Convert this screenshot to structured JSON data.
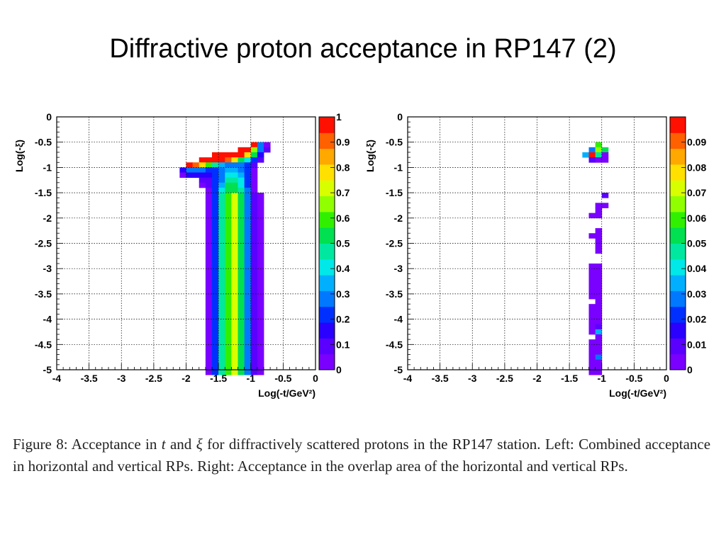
{
  "slide": {
    "title": "Diffractive proton acceptance in RP147 (2)"
  },
  "caption": {
    "label": "Figure 8:",
    "part1": "Acceptance in",
    "t_symbol": "t",
    "and": "and",
    "xi_symbol": "ξ",
    "part2": "for diffractively scattered protons in the RP147 station.",
    "part3": "Left: Combined acceptance in horizontal and vertical RPs.  Right: Acceptance in the overlap area of the horizontal and vertical RPs."
  },
  "chart_data": [
    {
      "type": "heatmap",
      "panel": "left",
      "title": "",
      "xlabel": "Log(-t/GeV²)",
      "ylabel": "Log(-ξ)",
      "xlim": [
        -4,
        0
      ],
      "ylim": [
        -5,
        0
      ],
      "xticks": [
        "-4",
        "-3.5",
        "-3",
        "-2.5",
        "-2",
        "-1.5",
        "-1",
        "-0.5",
        "0"
      ],
      "yticks": [
        "0",
        "-0.5",
        "-1",
        "-1.5",
        "-2",
        "-2.5",
        "-3",
        "-3.5",
        "-4",
        "-4.5",
        "-5"
      ],
      "grid": true,
      "bin_width_x": 0.1,
      "bin_width_y": 0.1,
      "zlim": [
        0,
        1
      ],
      "colorbar_ticks": [
        "1",
        "0.9",
        "0.8",
        "0.7",
        "0.6",
        "0.5",
        "0.4",
        "0.3",
        "0.2",
        "0.1",
        "0"
      ],
      "cells": [
        [
          -1.0,
          -0.5,
          1.0
        ],
        [
          -0.9,
          -0.5,
          0.3
        ],
        [
          -0.8,
          -0.5,
          0.05
        ],
        [
          -1.2,
          -0.6,
          1.0
        ],
        [
          -1.1,
          -0.6,
          1.0
        ],
        [
          -1.0,
          -0.6,
          0.65
        ],
        [
          -0.9,
          -0.6,
          0.25
        ],
        [
          -0.8,
          -0.6,
          0.1
        ],
        [
          -1.6,
          -0.7,
          1.0
        ],
        [
          -1.5,
          -0.7,
          1.0
        ],
        [
          -1.4,
          -0.7,
          1.0
        ],
        [
          -1.3,
          -0.7,
          1.0
        ],
        [
          -1.2,
          -0.7,
          1.0
        ],
        [
          -1.1,
          -0.7,
          0.8
        ],
        [
          -1.0,
          -0.7,
          0.5
        ],
        [
          -0.9,
          -0.7,
          0.15
        ],
        [
          -1.8,
          -0.8,
          1.0
        ],
        [
          -1.7,
          -0.8,
          1.0
        ],
        [
          -1.6,
          -0.8,
          1.0
        ],
        [
          -1.5,
          -0.8,
          1.0
        ],
        [
          -1.4,
          -0.8,
          0.9
        ],
        [
          -1.3,
          -0.8,
          0.75
        ],
        [
          -1.2,
          -0.8,
          0.55
        ],
        [
          -1.1,
          -0.8,
          0.4
        ],
        [
          -1.0,
          -0.8,
          0.2
        ],
        [
          -0.9,
          -0.8,
          0.08
        ],
        [
          -2.0,
          -0.9,
          1.0
        ],
        [
          -1.9,
          -0.9,
          0.9
        ],
        [
          -1.8,
          -0.9,
          0.75
        ],
        [
          -1.7,
          -0.9,
          0.6
        ],
        [
          -1.6,
          -0.9,
          0.45
        ],
        [
          -1.5,
          -0.9,
          0.35
        ],
        [
          -1.4,
          -0.9,
          0.3
        ],
        [
          -1.3,
          -0.9,
          0.3
        ],
        [
          -1.2,
          -0.9,
          0.3
        ],
        [
          -1.1,
          -0.9,
          0.2
        ],
        [
          -1.0,
          -0.9,
          0.08
        ],
        [
          -2.1,
          -1.0,
          0.15
        ],
        [
          -2.0,
          -1.0,
          0.3
        ],
        [
          -1.9,
          -1.0,
          0.28
        ],
        [
          -1.8,
          -1.0,
          0.25
        ],
        [
          -1.7,
          -1.0,
          0.22
        ],
        [
          -1.6,
          -1.0,
          0.2
        ],
        [
          -1.5,
          -1.0,
          0.3
        ],
        [
          -1.4,
          -1.0,
          0.35
        ],
        [
          -1.3,
          -1.0,
          0.35
        ],
        [
          -1.2,
          -1.0,
          0.3
        ],
        [
          -1.1,
          -1.0,
          0.2
        ],
        [
          -1.0,
          -1.0,
          0.05
        ],
        [
          -2.1,
          -1.1,
          0.05
        ],
        [
          -2.0,
          -1.1,
          0.15
        ],
        [
          -1.9,
          -1.1,
          0.18
        ],
        [
          -1.8,
          -1.1,
          0.15
        ],
        [
          -1.7,
          -1.1,
          0.15
        ],
        [
          -1.6,
          -1.1,
          0.2
        ],
        [
          -1.5,
          -1.1,
          0.3
        ],
        [
          -1.4,
          -1.1,
          0.4
        ],
        [
          -1.3,
          -1.1,
          0.4
        ],
        [
          -1.2,
          -1.1,
          0.35
        ],
        [
          -1.1,
          -1.1,
          0.2
        ],
        [
          -1.0,
          -1.1,
          0.05
        ],
        [
          -1.8,
          -1.2,
          0.08
        ],
        [
          -1.7,
          -1.2,
          0.12
        ],
        [
          -1.6,
          -1.2,
          0.2
        ],
        [
          -1.5,
          -1.2,
          0.3
        ],
        [
          -1.4,
          -1.2,
          0.45
        ],
        [
          -1.3,
          -1.2,
          0.45
        ],
        [
          -1.2,
          -1.2,
          0.4
        ],
        [
          -1.1,
          -1.2,
          0.2
        ],
        [
          -1.0,
          -1.2,
          0.05
        ],
        [
          -1.8,
          -1.3,
          0.05
        ],
        [
          -1.7,
          -1.3,
          0.1
        ],
        [
          -1.6,
          -1.3,
          0.2
        ],
        [
          -1.5,
          -1.3,
          0.35
        ],
        [
          -1.4,
          -1.3,
          0.5
        ],
        [
          -1.3,
          -1.3,
          0.5
        ],
        [
          -1.2,
          -1.3,
          0.4
        ],
        [
          -1.1,
          -1.3,
          0.2
        ],
        [
          -1.0,
          -1.3,
          0.05
        ],
        [
          -1.7,
          -1.4,
          0.05
        ],
        [
          -1.6,
          -1.4,
          0.2
        ],
        [
          -1.5,
          -1.4,
          0.4
        ],
        [
          -1.4,
          -1.4,
          0.55
        ],
        [
          -1.3,
          -1.4,
          0.55
        ],
        [
          -1.2,
          -1.4,
          0.45
        ],
        [
          -1.1,
          -1.4,
          0.25
        ],
        [
          -1.0,
          -1.4,
          0.05
        ]
      ],
      "column_profile": {
        "y_from": -5.0,
        "y_to": -1.5,
        "x": [
          -1.7,
          -1.6,
          -1.5,
          -1.4,
          -1.3,
          -1.2,
          -1.1,
          -1.0,
          -0.9
        ],
        "values": [
          0.05,
          0.22,
          0.45,
          0.62,
          0.7,
          0.55,
          0.3,
          0.1,
          0.05
        ]
      }
    },
    {
      "type": "heatmap",
      "panel": "right",
      "title": "",
      "xlabel": "Log(-t/GeV²)",
      "ylabel": "Log(-ξ)",
      "xlim": [
        -4,
        0
      ],
      "ylim": [
        -5,
        0
      ],
      "xticks": [
        "-4",
        "-3.5",
        "-3",
        "-2.5",
        "-2",
        "-1.5",
        "-1",
        "-0.5",
        "0"
      ],
      "yticks": [
        "0",
        "-0.5",
        "-1",
        "-1.5",
        "-2",
        "-2.5",
        "-3",
        "-3.5",
        "-4",
        "-4.5",
        "-5"
      ],
      "grid": true,
      "bin_width_x": 0.1,
      "bin_width_y": 0.1,
      "zlim": [
        0,
        0.1
      ],
      "colorbar_ticks": [
        "0.09",
        "0.08",
        "0.07",
        "0.06",
        "0.05",
        "0.04",
        "0.03",
        "0.02",
        "0.01",
        "0"
      ],
      "cells": [
        [
          -1.1,
          -0.5,
          0.06
        ],
        [
          -1.2,
          -0.6,
          0.03
        ],
        [
          -1.1,
          -0.6,
          0.065
        ],
        [
          -1.0,
          -0.6,
          0.05
        ],
        [
          -1.3,
          -0.7,
          0.035
        ],
        [
          -1.2,
          -0.7,
          0.095
        ],
        [
          -1.1,
          -0.7,
          0.045
        ],
        [
          -1.0,
          -0.7,
          0.005
        ],
        [
          -1.2,
          -0.8,
          0.008
        ],
        [
          -1.1,
          -0.8,
          0.005
        ],
        [
          -1.0,
          -0.8,
          0.006
        ],
        [
          -1.0,
          -1.5,
          0.008
        ],
        [
          -1.1,
          -1.7,
          0.005
        ],
        [
          -1.0,
          -1.7,
          0.006
        ],
        [
          -1.1,
          -1.8,
          0.004
        ],
        [
          -1.2,
          -1.9,
          0.006
        ],
        [
          -1.1,
          -1.9,
          0.005
        ],
        [
          -1.1,
          -2.2,
          0.006
        ],
        [
          -1.2,
          -2.3,
          0.005
        ],
        [
          -1.1,
          -2.3,
          0.006
        ],
        [
          -1.1,
          -2.4,
          0.005
        ],
        [
          -1.1,
          -2.5,
          0.006
        ],
        [
          -1.1,
          -2.6,
          0.005
        ],
        [
          -1.2,
          -2.9,
          0.006
        ],
        [
          -1.1,
          -2.9,
          0.005
        ],
        [
          -1.2,
          -3.0,
          0.005
        ],
        [
          -1.1,
          -3.0,
          0.006
        ],
        [
          -1.2,
          -3.1,
          0.006
        ],
        [
          -1.1,
          -3.1,
          0.005
        ],
        [
          -1.2,
          -3.2,
          0.005
        ],
        [
          -1.1,
          -3.2,
          0.006
        ],
        [
          -1.2,
          -3.3,
          0.006
        ],
        [
          -1.1,
          -3.3,
          0.005
        ],
        [
          -1.2,
          -3.4,
          0.005
        ],
        [
          -1.1,
          -3.4,
          0.006
        ],
        [
          -1.2,
          -3.5,
          0.006
        ],
        [
          -1.1,
          -3.5,
          0.005
        ],
        [
          -1.1,
          -3.6,
          0.006
        ],
        [
          -1.2,
          -3.7,
          0.005
        ],
        [
          -1.1,
          -3.7,
          0.006
        ],
        [
          -1.2,
          -3.8,
          0.006
        ],
        [
          -1.1,
          -3.8,
          0.005
        ],
        [
          -1.2,
          -3.9,
          0.005
        ],
        [
          -1.1,
          -3.9,
          0.006
        ],
        [
          -1.2,
          -4.0,
          0.006
        ],
        [
          -1.1,
          -4.0,
          0.005
        ],
        [
          -1.2,
          -4.1,
          0.005
        ],
        [
          -1.1,
          -4.1,
          0.012
        ],
        [
          -1.2,
          -4.2,
          0.006
        ],
        [
          -1.1,
          -4.2,
          0.035
        ],
        [
          -1.1,
          -4.3,
          0.006
        ],
        [
          -1.2,
          -4.4,
          0.005
        ],
        [
          -1.1,
          -4.4,
          0.006
        ],
        [
          -1.2,
          -4.5,
          0.006
        ],
        [
          -1.1,
          -4.5,
          0.005
        ],
        [
          -1.2,
          -4.6,
          0.005
        ],
        [
          -1.1,
          -4.6,
          0.006
        ],
        [
          -1.2,
          -4.7,
          0.006
        ],
        [
          -1.1,
          -4.7,
          0.025
        ],
        [
          -1.2,
          -4.8,
          0.005
        ],
        [
          -1.1,
          -4.8,
          0.006
        ],
        [
          -1.2,
          -4.9,
          0.006
        ],
        [
          -1.1,
          -4.9,
          0.005
        ],
        [
          -1.2,
          -5.0,
          0.005
        ],
        [
          -1.1,
          -5.0,
          0.006
        ]
      ]
    }
  ],
  "colors": {
    "palette": [
      "#7a00ff",
      "#5a00ff",
      "#2a00ff",
      "#0030ff",
      "#0078ff",
      "#00b0ff",
      "#00e8e8",
      "#00e8a0",
      "#00e050",
      "#30f000",
      "#90ff00",
      "#d8ff00",
      "#ffe000",
      "#ffa800",
      "#ff6000",
      "#ff1000"
    ],
    "grid": "#000000",
    "axis": "#000000"
  }
}
